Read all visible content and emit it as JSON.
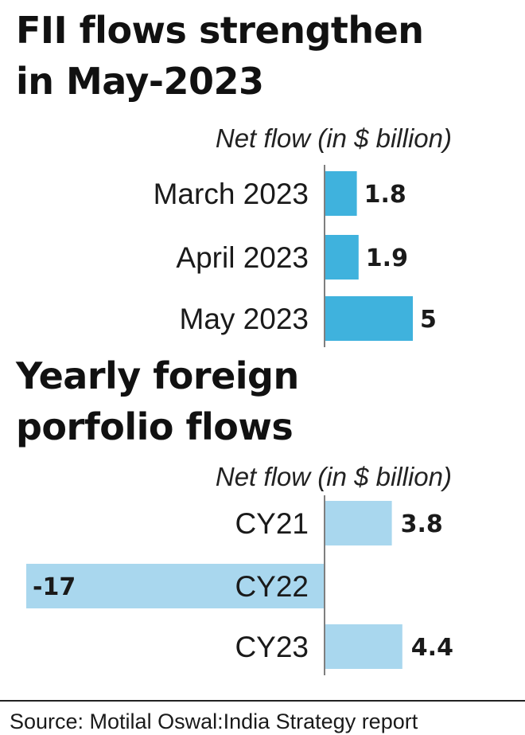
{
  "chart_data": [
    {
      "type": "bar",
      "orientation": "horizontal",
      "title": "FII flows strengthen in May-2023",
      "title_lines": [
        "FII flows strengthen",
        "in May-2023"
      ],
      "subtitle": "Net flow (in $ billion)",
      "categories": [
        "March 2023",
        "April 2023",
        "May 2023"
      ],
      "values": [
        1.8,
        1.9,
        5
      ],
      "value_labels": [
        "1.8",
        "1.9",
        "5"
      ],
      "bar_color": "#3fb2dd",
      "grid": false
    },
    {
      "type": "bar",
      "orientation": "horizontal",
      "title": "Yearly foreign porfolio flows",
      "title_lines": [
        "Yearly foreign",
        "porfolio flows"
      ],
      "subtitle": "Net flow (in $ billion)",
      "categories": [
        "CY21",
        "CY22",
        "CY23"
      ],
      "values": [
        3.8,
        -17,
        4.4
      ],
      "value_labels": [
        "3.8",
        "-17",
        "4.4"
      ],
      "bar_color": "#a9d7ee",
      "grid": false
    }
  ],
  "source": "Source: Motilal Oswal:India Strategy report",
  "colors": {
    "axis": "#555555",
    "rule": "#222222",
    "text": "#1a1a1a"
  }
}
